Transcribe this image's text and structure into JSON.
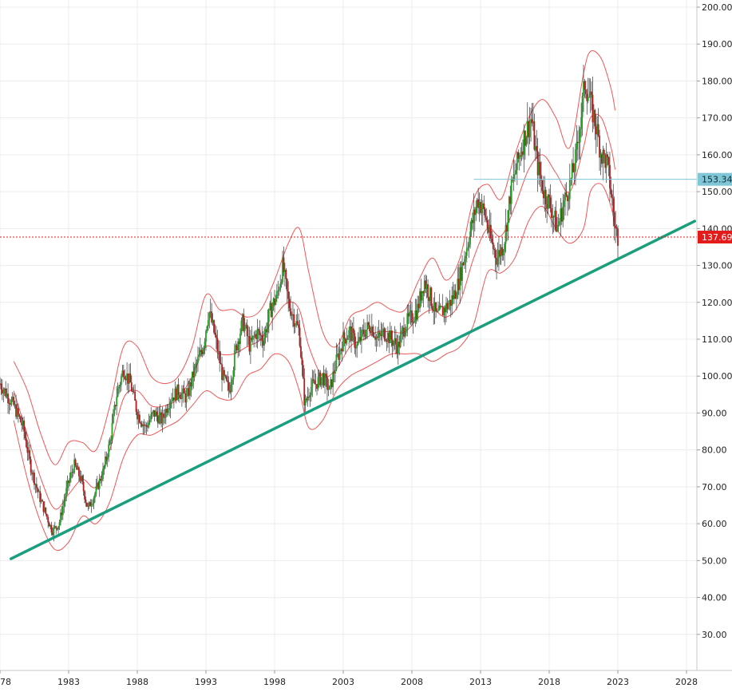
{
  "chart_data": {
    "type": "candlestick",
    "title": "",
    "xlabel": "",
    "ylabel": "",
    "ylim": [
      22,
      202
    ],
    "xlim": [
      1978.0,
      2028.6
    ],
    "grid": true,
    "y_ticks": [
      "30.00",
      "40.00",
      "50.00",
      "60.00",
      "70.00",
      "80.00",
      "90.00",
      "100.00",
      "110.00",
      "120.00",
      "130.00",
      "140.00",
      "150.00",
      "160.00",
      "170.00",
      "180.00",
      "190.00",
      "200.00"
    ],
    "x_ticks": [
      {
        "label": "78",
        "year": 1978
      },
      {
        "label": "1983",
        "year": 1983
      },
      {
        "label": "1988",
        "year": 1988
      },
      {
        "label": "1993",
        "year": 1993
      },
      {
        "label": "1998",
        "year": 1998
      },
      {
        "label": "2003",
        "year": 2003
      },
      {
        "label": "2008",
        "year": 2008
      },
      {
        "label": "2013",
        "year": 2013
      },
      {
        "label": "2018",
        "year": 2018
      },
      {
        "label": "2023",
        "year": 2023
      },
      {
        "label": "2028",
        "year": 2028
      }
    ],
    "price_path": [
      [
        1978.0,
        98
      ],
      [
        1979.0,
        92
      ],
      [
        1979.7,
        86
      ],
      [
        1980.2,
        76
      ],
      [
        1980.8,
        68
      ],
      [
        1981.3,
        63
      ],
      [
        1981.8,
        58
      ],
      [
        1982.3,
        60
      ],
      [
        1982.9,
        70
      ],
      [
        1983.4,
        76
      ],
      [
        1983.9,
        72
      ],
      [
        1984.4,
        64
      ],
      [
        1984.9,
        68
      ],
      [
        1985.5,
        74
      ],
      [
        1986.0,
        82
      ],
      [
        1986.5,
        95
      ],
      [
        1987.0,
        102
      ],
      [
        1987.5,
        98
      ],
      [
        1988.0,
        90
      ],
      [
        1988.6,
        86
      ],
      [
        1989.2,
        90
      ],
      [
        1989.8,
        88
      ],
      [
        1990.4,
        94
      ],
      [
        1991.0,
        96
      ],
      [
        1991.6,
        94
      ],
      [
        1992.2,
        102
      ],
      [
        1992.8,
        108
      ],
      [
        1993.2,
        118
      ],
      [
        1993.7,
        110
      ],
      [
        1994.2,
        100
      ],
      [
        1994.7,
        96
      ],
      [
        1995.2,
        108
      ],
      [
        1995.7,
        115
      ],
      [
        1996.2,
        108
      ],
      [
        1996.7,
        112
      ],
      [
        1997.2,
        110
      ],
      [
        1997.7,
        118
      ],
      [
        1998.2,
        122
      ],
      [
        1998.6,
        130
      ],
      [
        1999.0,
        120
      ],
      [
        1999.4,
        116
      ],
      [
        1999.8,
        112
      ],
      [
        2000.2,
        92
      ],
      [
        2000.6,
        97
      ],
      [
        2001.0,
        98
      ],
      [
        2001.5,
        100
      ],
      [
        2002.0,
        96
      ],
      [
        2002.5,
        104
      ],
      [
        2003.0,
        110
      ],
      [
        2003.5,
        112
      ],
      [
        2004.0,
        108
      ],
      [
        2004.5,
        112
      ],
      [
        2005.0,
        114
      ],
      [
        2005.5,
        110
      ],
      [
        2006.0,
        112
      ],
      [
        2006.5,
        110
      ],
      [
        2007.0,
        108
      ],
      [
        2007.5,
        114
      ],
      [
        2008.0,
        116
      ],
      [
        2008.4,
        118
      ],
      [
        2008.9,
        126
      ],
      [
        2009.3,
        122
      ],
      [
        2009.8,
        116
      ],
      [
        2010.3,
        118
      ],
      [
        2010.8,
        120
      ],
      [
        2011.3,
        124
      ],
      [
        2011.8,
        132
      ],
      [
        2012.3,
        140
      ],
      [
        2012.8,
        148
      ],
      [
        2013.3,
        144
      ],
      [
        2013.8,
        136
      ],
      [
        2014.2,
        132
      ],
      [
        2014.7,
        136
      ],
      [
        2015.2,
        150
      ],
      [
        2015.7,
        158
      ],
      [
        2016.2,
        165
      ],
      [
        2016.7,
        170
      ],
      [
        2017.1,
        158
      ],
      [
        2017.6,
        150
      ],
      [
        2018.1,
        146
      ],
      [
        2018.6,
        140
      ],
      [
        2019.0,
        146
      ],
      [
        2019.5,
        152
      ],
      [
        2019.9,
        158
      ],
      [
        2020.3,
        170
      ],
      [
        2020.6,
        180
      ],
      [
        2021.0,
        174
      ],
      [
        2021.4,
        168
      ],
      [
        2021.8,
        160
      ],
      [
        2022.2,
        158
      ],
      [
        2022.5,
        150
      ],
      [
        2022.8,
        140
      ],
      [
        2023.0,
        138
      ]
    ],
    "bollinger": {
      "color": "#ef4444",
      "upper": [
        [
          1979.0,
          104
        ],
        [
          1980.0,
          96
        ],
        [
          1981.0,
          84
        ],
        [
          1982.0,
          76
        ],
        [
          1983.0,
          82
        ],
        [
          1984.0,
          82
        ],
        [
          1985.0,
          80
        ],
        [
          1986.0,
          92
        ],
        [
          1987.0,
          108
        ],
        [
          1988.0,
          108
        ],
        [
          1989.0,
          100
        ],
        [
          1990.0,
          98
        ],
        [
          1991.0,
          100
        ],
        [
          1992.0,
          108
        ],
        [
          1993.0,
          122
        ],
        [
          1994.0,
          118
        ],
        [
          1995.0,
          118
        ],
        [
          1996.0,
          116
        ],
        [
          1997.0,
          118
        ],
        [
          1998.0,
          126
        ],
        [
          1999.0,
          136
        ],
        [
          1999.8,
          140
        ],
        [
          2000.5,
          128
        ],
        [
          2001.5,
          112
        ],
        [
          2002.5,
          108
        ],
        [
          2003.5,
          116
        ],
        [
          2004.5,
          118
        ],
        [
          2005.5,
          120
        ],
        [
          2006.5,
          118
        ],
        [
          2007.5,
          118
        ],
        [
          2008.5,
          126
        ],
        [
          2009.5,
          132
        ],
        [
          2010.5,
          126
        ],
        [
          2011.5,
          132
        ],
        [
          2012.5,
          148
        ],
        [
          2013.5,
          152
        ],
        [
          2014.5,
          148
        ],
        [
          2015.5,
          160
        ],
        [
          2016.5,
          170
        ],
        [
          2017.5,
          175
        ],
        [
          2018.5,
          170
        ],
        [
          2019.5,
          162
        ],
        [
          2020.5,
          182
        ],
        [
          2021.0,
          188
        ],
        [
          2021.8,
          186
        ],
        [
          2022.5,
          178
        ],
        [
          2022.8,
          172
        ]
      ],
      "middle": [
        [
          1979.0,
          96
        ],
        [
          1980.0,
          84
        ],
        [
          1981.0,
          72
        ],
        [
          1982.0,
          64
        ],
        [
          1983.0,
          68
        ],
        [
          1984.0,
          72
        ],
        [
          1985.0,
          70
        ],
        [
          1986.0,
          80
        ],
        [
          1987.0,
          94
        ],
        [
          1988.0,
          96
        ],
        [
          1989.0,
          92
        ],
        [
          1990.0,
          92
        ],
        [
          1991.0,
          94
        ],
        [
          1992.0,
          100
        ],
        [
          1993.0,
          108
        ],
        [
          1994.0,
          106
        ],
        [
          1995.0,
          106
        ],
        [
          1996.0,
          108
        ],
        [
          1997.0,
          110
        ],
        [
          1998.0,
          116
        ],
        [
          1999.0,
          120
        ],
        [
          1999.8,
          118
        ],
        [
          2000.5,
          108
        ],
        [
          2001.5,
          100
        ],
        [
          2002.5,
          102
        ],
        [
          2003.5,
          108
        ],
        [
          2004.5,
          110
        ],
        [
          2005.5,
          112
        ],
        [
          2006.5,
          112
        ],
        [
          2007.5,
          112
        ],
        [
          2008.5,
          116
        ],
        [
          2009.5,
          118
        ],
        [
          2010.5,
          116
        ],
        [
          2011.5,
          120
        ],
        [
          2012.5,
          132
        ],
        [
          2013.5,
          140
        ],
        [
          2014.5,
          138
        ],
        [
          2015.5,
          146
        ],
        [
          2016.5,
          156
        ],
        [
          2017.5,
          160
        ],
        [
          2018.5,
          155
        ],
        [
          2019.5,
          150
        ],
        [
          2020.5,
          162
        ],
        [
          2021.0,
          170
        ],
        [
          2021.8,
          170
        ],
        [
          2022.5,
          162
        ],
        [
          2022.8,
          156
        ]
      ],
      "lower": [
        [
          1979.0,
          88
        ],
        [
          1980.0,
          72
        ],
        [
          1981.0,
          60
        ],
        [
          1982.0,
          53
        ],
        [
          1983.0,
          55
        ],
        [
          1984.0,
          62
        ],
        [
          1985.0,
          60
        ],
        [
          1986.0,
          66
        ],
        [
          1987.0,
          78
        ],
        [
          1988.0,
          84
        ],
        [
          1989.0,
          84
        ],
        [
          1990.0,
          86
        ],
        [
          1991.0,
          88
        ],
        [
          1992.0,
          92
        ],
        [
          1993.0,
          96
        ],
        [
          1994.0,
          94
        ],
        [
          1995.0,
          94
        ],
        [
          1996.0,
          100
        ],
        [
          1997.0,
          102
        ],
        [
          1998.0,
          106
        ],
        [
          1999.0,
          104
        ],
        [
          1999.8,
          96
        ],
        [
          2000.5,
          86
        ],
        [
          2001.5,
          88
        ],
        [
          2002.5,
          96
        ],
        [
          2003.5,
          100
        ],
        [
          2004.5,
          102
        ],
        [
          2005.5,
          104
        ],
        [
          2006.5,
          106
        ],
        [
          2007.5,
          106
        ],
        [
          2008.5,
          106
        ],
        [
          2009.5,
          104
        ],
        [
          2010.5,
          106
        ],
        [
          2011.5,
          108
        ],
        [
          2012.5,
          114
        ],
        [
          2013.5,
          128
        ],
        [
          2014.5,
          128
        ],
        [
          2015.5,
          132
        ],
        [
          2016.5,
          142
        ],
        [
          2017.5,
          146
        ],
        [
          2018.5,
          140
        ],
        [
          2019.5,
          136
        ],
        [
          2020.5,
          140
        ],
        [
          2021.0,
          150
        ],
        [
          2021.8,
          152
        ],
        [
          2022.5,
          146
        ],
        [
          2022.8,
          140
        ]
      ]
    },
    "trendline": {
      "color": "#1a9e7e",
      "from": [
        1978.8,
        50.5
      ],
      "to": [
        2028.6,
        142
      ]
    },
    "levels": [
      {
        "value": 153.34,
        "label": "153.34",
        "color": "#7fc6d6",
        "style": "solid",
        "start": 2012.5
      },
      {
        "value": 137.69,
        "label": "137.69",
        "color": "#e31b1b",
        "style": "dotted",
        "start": 1978.0
      }
    ]
  }
}
